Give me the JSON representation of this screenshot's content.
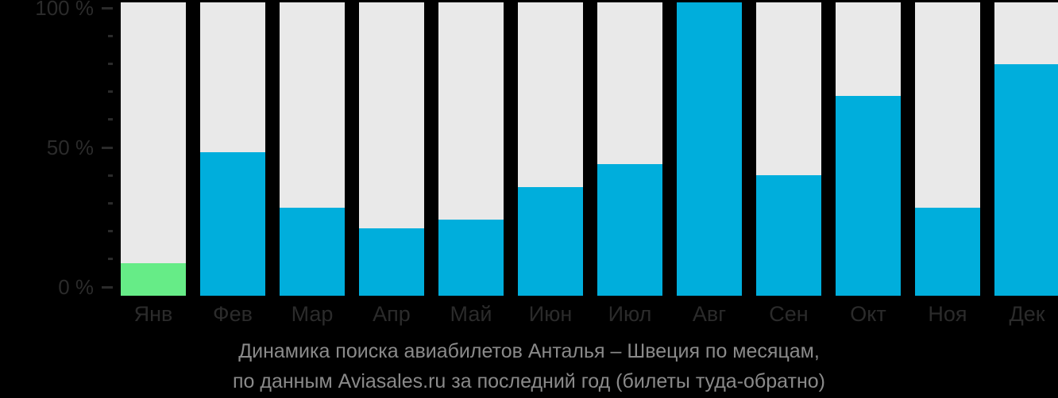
{
  "page": {
    "background": "#000000"
  },
  "caption": {
    "line1": "Динамика поиска авиабилетов Анталья – Швеция по месяцам,",
    "line2": "по данным Aviasales.ru за последний год (билеты туда-обратно)"
  },
  "chart_data": {
    "type": "bar",
    "title": "Динамика поиска авиабилетов Анталья – Швеция по месяцам, по данным Aviasales.ru за последний год (билеты туда-обратно)",
    "categories": [
      "Янв",
      "Фев",
      "Мар",
      "Апр",
      "Май",
      "Июн",
      "Июл",
      "Авг",
      "Сен",
      "Окт",
      "Ноя",
      "Дек"
    ],
    "values": [
      11,
      49,
      30,
      23,
      26,
      37,
      45,
      100,
      41,
      68,
      30,
      79
    ],
    "unit": "%",
    "xlabel": "",
    "ylabel": "",
    "ylim": [
      0,
      100
    ],
    "grid": false,
    "legend": null,
    "y_major_ticks": [
      {
        "label": "100 %",
        "value": 100
      },
      {
        "label": "50 %",
        "value": 50
      },
      {
        "label": "0 %",
        "value": 0
      }
    ],
    "y_minor_tick_step": 10,
    "highlight_index": 0,
    "colors": {
      "bar": "#00AEDC",
      "highlight": "#66EC87",
      "track": "#E9E9E9",
      "axis_text": "#2B2B2B",
      "caption_text": "#8A8A8A",
      "background": "#000000"
    }
  }
}
